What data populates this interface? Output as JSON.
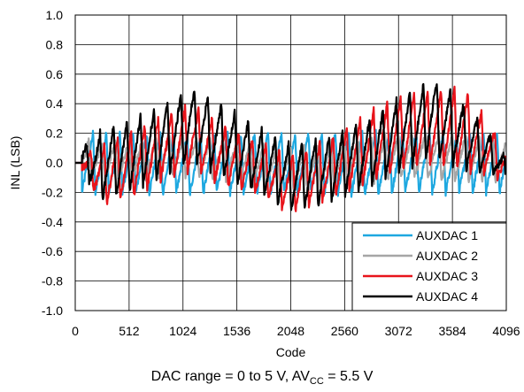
{
  "chart_data": {
    "type": "line",
    "xlabel": "Code",
    "ylabel": "INL (LSB)",
    "xlim": [
      0,
      4096
    ],
    "ylim": [
      -1.0,
      1.0
    ],
    "xticks": [
      0,
      512,
      1024,
      1536,
      2048,
      2560,
      3072,
      3584,
      4096
    ],
    "xtick_labels": [
      "0",
      "512",
      "1024",
      "1536",
      "2048",
      "2560",
      "3072",
      "3584",
      "4096"
    ],
    "yticks": [
      1.0,
      0.8,
      0.6,
      0.4,
      0.2,
      0.0,
      -0.2,
      -0.4,
      -0.6,
      -0.8,
      -1.0
    ],
    "ytick_labels": [
      "1.0",
      "0.8",
      "0.6",
      "0.4",
      "0.2",
      "0.0",
      "-0.2",
      "-0.4",
      "-0.6",
      "-0.8",
      "-1.0"
    ],
    "grid": true,
    "legend_position": "bottom-right",
    "note": "each trace is a sawtooth (period about 128 codes) starting near code 64; envelope values below are approximate peak/trough levels read from the plot",
    "series": [
      {
        "name": "AUXDAC 1",
        "color": "#1ea8e0",
        "envelope": {
          "x": [
            64,
            300,
            700,
            1100,
            1500,
            1900,
            2300,
            2700,
            3100,
            3500,
            3900,
            4080
          ],
          "upper": [
            0.2,
            0.2,
            0.2,
            0.2,
            0.2,
            0.2,
            0.2,
            0.2,
            0.22,
            0.2,
            0.2,
            0.2
          ],
          "lower": [
            -0.2,
            -0.2,
            -0.2,
            -0.22,
            -0.2,
            -0.2,
            -0.2,
            -0.22,
            -0.2,
            -0.2,
            -0.2,
            -0.2
          ]
        }
      },
      {
        "name": "AUXDAC 2",
        "color": "#a6a6a6",
        "envelope": {
          "x": [
            64,
            500,
            1024,
            1500,
            2048,
            2600,
            3072,
            3600,
            4080
          ],
          "upper": [
            0.15,
            0.15,
            0.18,
            0.14,
            0.1,
            0.15,
            0.2,
            0.2,
            0.15
          ],
          "lower": [
            -0.1,
            -0.12,
            -0.08,
            -0.12,
            -0.18,
            -0.15,
            -0.1,
            -0.12,
            -0.12
          ]
        }
      },
      {
        "name": "AUXDAC 3",
        "color": "#e8141b",
        "envelope": {
          "x": [
            64,
            250,
            500,
            800,
            1100,
            1400,
            1700,
            2048,
            2400,
            2800,
            3100,
            3400,
            3700,
            4000,
            4080
          ],
          "upper": [
            0.05,
            0.12,
            0.2,
            0.3,
            0.4,
            0.25,
            0.15,
            0.05,
            0.15,
            0.35,
            0.45,
            0.5,
            0.5,
            0.2,
            0.1
          ],
          "lower": [
            -0.05,
            -0.28,
            -0.25,
            -0.12,
            -0.05,
            -0.15,
            -0.2,
            -0.33,
            -0.25,
            -0.12,
            -0.05,
            0.0,
            -0.05,
            -0.1,
            -0.15
          ]
        }
      },
      {
        "name": "AUXDAC 4",
        "color": "#000000",
        "envelope": {
          "x": [
            64,
            250,
            500,
            800,
            1100,
            1400,
            1700,
            2048,
            2400,
            2800,
            3100,
            3400,
            3700,
            4000,
            4080
          ],
          "upper": [
            0.1,
            0.22,
            0.28,
            0.38,
            0.52,
            0.4,
            0.25,
            0.12,
            0.18,
            0.3,
            0.45,
            0.58,
            0.4,
            0.15,
            0.05
          ],
          "lower": [
            -0.05,
            -0.25,
            -0.2,
            -0.1,
            0.0,
            -0.1,
            -0.2,
            -0.32,
            -0.28,
            -0.15,
            -0.05,
            0.05,
            -0.05,
            -0.1,
            -0.18
          ]
        }
      }
    ]
  },
  "caption": {
    "main": "DAC range = 0 to 5 V, AV",
    "sub": "CC",
    "tail": " = 5.5 V"
  }
}
